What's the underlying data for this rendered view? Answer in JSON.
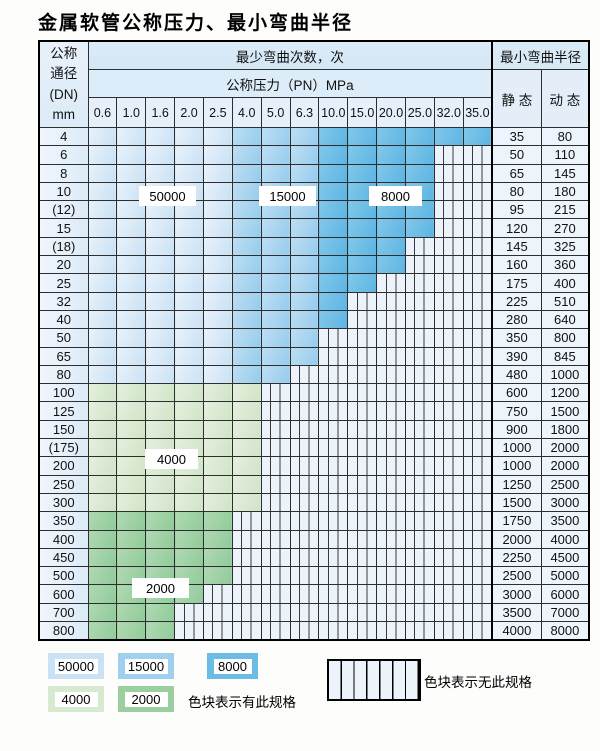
{
  "title": "金属软管公称压力、最小弯曲半径",
  "table": {
    "header": {
      "dn_lines": [
        "公称",
        "通径",
        "(DN)",
        "mm"
      ],
      "bend_times": "最少弯曲次数，次",
      "pressure": "公称压力（PN）MPa",
      "pressures": [
        "0.6",
        "1.0",
        "1.6",
        "2.0",
        "2.5",
        "4.0",
        "5.0",
        "6.3",
        "10.0",
        "15.0",
        "20.0",
        "25.0",
        "32.0",
        "35.0"
      ],
      "radius": "最小弯曲半径",
      "static_label": "静 态",
      "dynamic_label": "动 态"
    },
    "rows": [
      {
        "dn": "4",
        "cells": [
          50000,
          50000,
          50000,
          50000,
          50000,
          15000,
          15000,
          15000,
          8000,
          8000,
          8000,
          8000,
          8000,
          8000
        ],
        "static": "35",
        "dynamic": "80"
      },
      {
        "dn": "6",
        "cells": [
          50000,
          50000,
          50000,
          50000,
          50000,
          15000,
          15000,
          15000,
          8000,
          8000,
          8000,
          8000,
          null,
          null
        ],
        "static": "50",
        "dynamic": "110"
      },
      {
        "dn": "8",
        "cells": [
          50000,
          50000,
          50000,
          50000,
          50000,
          15000,
          15000,
          15000,
          8000,
          8000,
          8000,
          8000,
          null,
          null
        ],
        "static": "65",
        "dynamic": "145"
      },
      {
        "dn": "10",
        "cells": [
          50000,
          50000,
          50000,
          50000,
          50000,
          15000,
          15000,
          15000,
          8000,
          8000,
          8000,
          8000,
          null,
          null
        ],
        "static": "80",
        "dynamic": "180"
      },
      {
        "dn": "(12)",
        "cells": [
          50000,
          50000,
          50000,
          50000,
          50000,
          15000,
          15000,
          15000,
          8000,
          8000,
          8000,
          8000,
          null,
          null
        ],
        "static": "95",
        "dynamic": "215"
      },
      {
        "dn": "15",
        "cells": [
          50000,
          50000,
          50000,
          50000,
          50000,
          15000,
          15000,
          15000,
          8000,
          8000,
          8000,
          8000,
          null,
          null
        ],
        "static": "120",
        "dynamic": "270"
      },
      {
        "dn": "(18)",
        "cells": [
          50000,
          50000,
          50000,
          50000,
          50000,
          15000,
          15000,
          15000,
          8000,
          8000,
          8000,
          null,
          null,
          null
        ],
        "static": "145",
        "dynamic": "325"
      },
      {
        "dn": "20",
        "cells": [
          50000,
          50000,
          50000,
          50000,
          50000,
          15000,
          15000,
          15000,
          8000,
          8000,
          8000,
          null,
          null,
          null
        ],
        "static": "160",
        "dynamic": "360"
      },
      {
        "dn": "25",
        "cells": [
          50000,
          50000,
          50000,
          50000,
          50000,
          15000,
          15000,
          15000,
          8000,
          8000,
          null,
          null,
          null,
          null
        ],
        "static": "175",
        "dynamic": "400"
      },
      {
        "dn": "32",
        "cells": [
          50000,
          50000,
          50000,
          50000,
          50000,
          15000,
          15000,
          15000,
          8000,
          null,
          null,
          null,
          null,
          null
        ],
        "static": "225",
        "dynamic": "510"
      },
      {
        "dn": "40",
        "cells": [
          50000,
          50000,
          50000,
          50000,
          50000,
          15000,
          15000,
          15000,
          8000,
          null,
          null,
          null,
          null,
          null
        ],
        "static": "280",
        "dynamic": "640"
      },
      {
        "dn": "50",
        "cells": [
          50000,
          50000,
          50000,
          50000,
          50000,
          15000,
          15000,
          15000,
          null,
          null,
          null,
          null,
          null,
          null
        ],
        "static": "350",
        "dynamic": "800"
      },
      {
        "dn": "65",
        "cells": [
          50000,
          50000,
          50000,
          50000,
          50000,
          15000,
          15000,
          15000,
          null,
          null,
          null,
          null,
          null,
          null
        ],
        "static": "390",
        "dynamic": "845"
      },
      {
        "dn": "80",
        "cells": [
          50000,
          50000,
          50000,
          50000,
          50000,
          15000,
          15000,
          null,
          null,
          null,
          null,
          null,
          null,
          null
        ],
        "static": "480",
        "dynamic": "1000"
      },
      {
        "dn": "100",
        "cells": [
          4000,
          4000,
          4000,
          4000,
          4000,
          4000,
          null,
          null,
          null,
          null,
          null,
          null,
          null,
          null
        ],
        "static": "600",
        "dynamic": "1200"
      },
      {
        "dn": "125",
        "cells": [
          4000,
          4000,
          4000,
          4000,
          4000,
          4000,
          null,
          null,
          null,
          null,
          null,
          null,
          null,
          null
        ],
        "static": "750",
        "dynamic": "1500"
      },
      {
        "dn": "150",
        "cells": [
          4000,
          4000,
          4000,
          4000,
          4000,
          4000,
          null,
          null,
          null,
          null,
          null,
          null,
          null,
          null
        ],
        "static": "900",
        "dynamic": "1800"
      },
      {
        "dn": "(175)",
        "cells": [
          4000,
          4000,
          4000,
          4000,
          4000,
          4000,
          null,
          null,
          null,
          null,
          null,
          null,
          null,
          null
        ],
        "static": "1000",
        "dynamic": "2000"
      },
      {
        "dn": "200",
        "cells": [
          4000,
          4000,
          4000,
          4000,
          4000,
          4000,
          null,
          null,
          null,
          null,
          null,
          null,
          null,
          null
        ],
        "static": "1000",
        "dynamic": "2000"
      },
      {
        "dn": "250",
        "cells": [
          4000,
          4000,
          4000,
          4000,
          4000,
          4000,
          null,
          null,
          null,
          null,
          null,
          null,
          null,
          null
        ],
        "static": "1250",
        "dynamic": "2500"
      },
      {
        "dn": "300",
        "cells": [
          4000,
          4000,
          4000,
          4000,
          4000,
          4000,
          null,
          null,
          null,
          null,
          null,
          null,
          null,
          null
        ],
        "static": "1500",
        "dynamic": "3000"
      },
      {
        "dn": "350",
        "cells": [
          2000,
          2000,
          2000,
          2000,
          2000,
          null,
          null,
          null,
          null,
          null,
          null,
          null,
          null,
          null
        ],
        "static": "1750",
        "dynamic": "3500"
      },
      {
        "dn": "400",
        "cells": [
          2000,
          2000,
          2000,
          2000,
          2000,
          null,
          null,
          null,
          null,
          null,
          null,
          null,
          null,
          null
        ],
        "static": "2000",
        "dynamic": "4000"
      },
      {
        "dn": "450",
        "cells": [
          2000,
          2000,
          2000,
          2000,
          2000,
          null,
          null,
          null,
          null,
          null,
          null,
          null,
          null,
          null
        ],
        "static": "2250",
        "dynamic": "4500"
      },
      {
        "dn": "500",
        "cells": [
          2000,
          2000,
          2000,
          2000,
          2000,
          null,
          null,
          null,
          null,
          null,
          null,
          null,
          null,
          null
        ],
        "static": "2500",
        "dynamic": "5000"
      },
      {
        "dn": "600",
        "cells": [
          2000,
          2000,
          2000,
          2000,
          null,
          null,
          null,
          null,
          null,
          null,
          null,
          null,
          null,
          null
        ],
        "static": "3000",
        "dynamic": "6000"
      },
      {
        "dn": "700",
        "cells": [
          2000,
          2000,
          2000,
          null,
          null,
          null,
          null,
          null,
          null,
          null,
          null,
          null,
          null,
          null
        ],
        "static": "3500",
        "dynamic": "7000"
      },
      {
        "dn": "800",
        "cells": [
          2000,
          2000,
          2000,
          null,
          null,
          null,
          null,
          null,
          null,
          null,
          null,
          null,
          null,
          null
        ],
        "static": "4000",
        "dynamic": "8000"
      }
    ]
  },
  "overlay_labels": [
    {
      "id": "50000",
      "text": "50000"
    },
    {
      "id": "15000",
      "text": "15000"
    },
    {
      "id": "8000",
      "text": "8000"
    },
    {
      "id": "4000",
      "text": "4000"
    },
    {
      "id": "2000",
      "text": "2000"
    }
  ],
  "legend": {
    "swatches": [
      {
        "id": "50000",
        "label": "50000"
      },
      {
        "id": "15000",
        "label": "15000"
      },
      {
        "id": "8000",
        "label": "8000"
      },
      {
        "id": "4000",
        "label": "4000"
      },
      {
        "id": "2000",
        "label": "2000"
      }
    ],
    "has_spec_caption": "色块表示有此规格",
    "no_spec_caption": "色块表示无此规格"
  },
  "colors": {
    "cycles_50000": "#c9e2f5",
    "cycles_15000": "#9fd1ee",
    "cycles_8000": "#6cbde6",
    "cycles_4000": "#d8e9d2",
    "cycles_2000": "#9bcf9f",
    "no_spec_bg": "#ecf3fb",
    "header_bg": "#dcebf8",
    "grid_line": "#2e2e2e"
  }
}
